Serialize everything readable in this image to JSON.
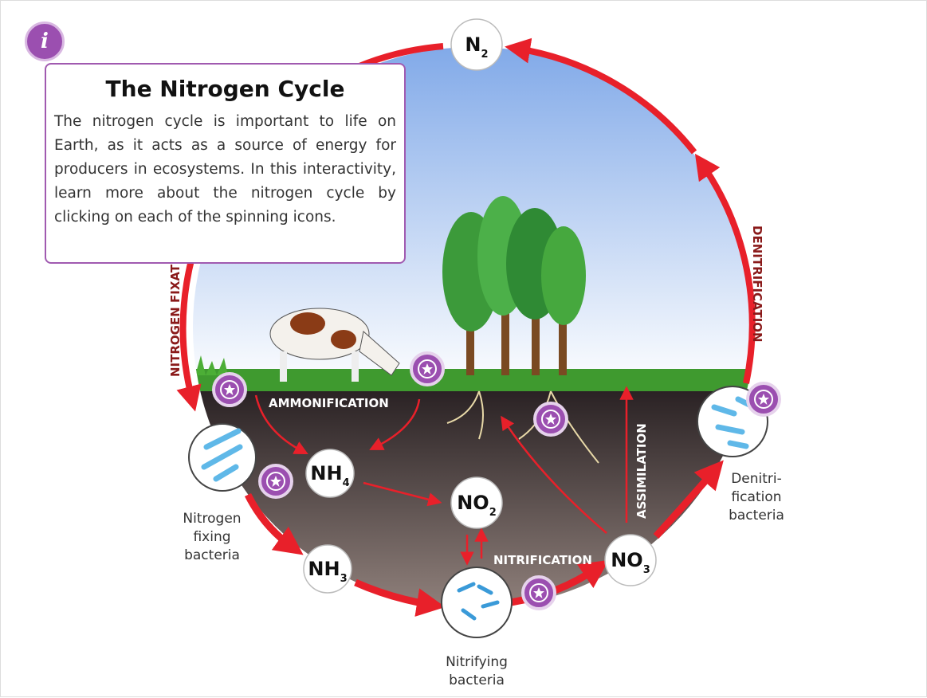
{
  "info_panel": {
    "title": "The Nitrogen Cycle",
    "body": "The nitrogen cycle is important to life on Earth, as it acts as a source of energy for producers in ecosystems. In this interactivity, learn more about the nitrogen cycle by clicking on each of the spinning icons."
  },
  "nodes": [
    {
      "label": "N",
      "sub": "2"
    },
    {
      "label": "NH",
      "sub": "4"
    },
    {
      "label": "NO",
      "sub": "2"
    },
    {
      "label": "NH",
      "sub": "3"
    },
    {
      "label": "NO",
      "sub": "3"
    }
  ],
  "processes": [
    "NITROGEN FIXATION",
    "DENITRIFICATION",
    "AMMONIFICATION",
    "NITRIFICATION",
    "ASSIMILATION"
  ],
  "bacteria": [
    {
      "lines": [
        "Nitrogen",
        "fixing",
        "bacteria"
      ]
    },
    {
      "lines": [
        "Nitrifying",
        "bacteria"
      ]
    },
    {
      "lines": [
        "Denitri-",
        "fication",
        "bacteria"
      ]
    }
  ]
}
